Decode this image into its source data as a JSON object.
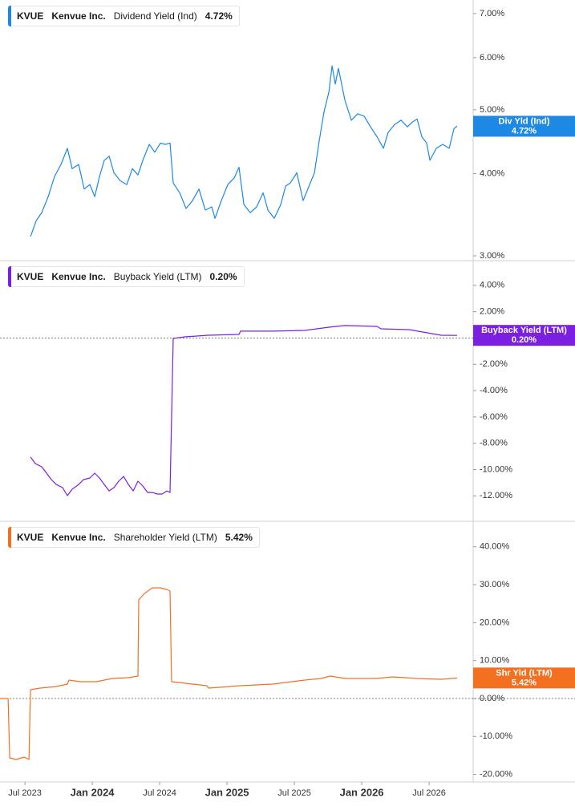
{
  "chart_data": [
    {
      "type": "line",
      "ticker": "KVUE",
      "company": "Kenvue Inc.",
      "title": "Dividend Yield (Ind)",
      "current": {
        "value": 4.72,
        "label": "4.72%"
      },
      "badge_label": "Div Yld (Ind)",
      "color": "#1e88e5",
      "log_scale": true,
      "xlim": [
        2023.315,
        2026.827
      ],
      "ylim": [
        2.95,
        7.34
      ],
      "yticks": [
        {
          "value": 3,
          "label": "3.00%"
        },
        {
          "value": 4,
          "label": "4.00%"
        },
        {
          "value": 5,
          "label": "5.00%"
        },
        {
          "value": 6,
          "label": "6.00%"
        },
        {
          "value": 7,
          "label": "7.00%"
        }
      ],
      "x": [
        2023.542,
        2023.583,
        2023.625,
        2023.673,
        2023.72,
        2023.768,
        2023.815,
        2023.851,
        2023.899,
        2023.94,
        2023.982,
        2024.018,
        2024.054,
        2024.089,
        2024.125,
        2024.161,
        2024.208,
        2024.256,
        2024.298,
        2024.339,
        2024.375,
        2024.423,
        2024.464,
        2024.506,
        2024.542,
        2024.577,
        2024.601,
        2024.649,
        2024.696,
        2024.744,
        2024.792,
        2024.839,
        2024.887,
        2024.911,
        2024.958,
        2025.006,
        2025.054,
        2025.089,
        2025.125,
        2025.173,
        2025.22,
        2025.268,
        2025.304,
        2025.351,
        2025.399,
        2025.435,
        2025.47,
        2025.518,
        2025.565,
        2025.613,
        2025.649,
        2025.685,
        2025.72,
        2025.756,
        2025.78,
        2025.804,
        2025.827,
        2025.875,
        2025.923,
        2025.97,
        2026.018,
        2026.065,
        2026.113,
        2026.161,
        2026.196,
        2026.244,
        2026.292,
        2026.339,
        2026.375,
        2026.411,
        2026.446,
        2026.482,
        2026.506,
        2026.554,
        2026.601,
        2026.649,
        2026.685,
        2026.708
      ],
      "values": [
        3.21,
        3.39,
        3.49,
        3.69,
        3.96,
        4.13,
        4.37,
        4.07,
        4.13,
        3.79,
        3.85,
        3.69,
        3.96,
        4.19,
        4.25,
        4.01,
        3.9,
        3.85,
        4.07,
        3.98,
        4.19,
        4.43,
        4.31,
        4.45,
        4.43,
        4.45,
        3.87,
        3.74,
        3.54,
        3.64,
        3.79,
        3.52,
        3.56,
        3.42,
        3.64,
        3.85,
        3.94,
        4.09,
        3.59,
        3.49,
        3.56,
        3.74,
        3.52,
        3.42,
        3.59,
        3.83,
        3.87,
        4.01,
        3.64,
        3.85,
        4.01,
        4.49,
        4.96,
        5.32,
        5.83,
        5.47,
        5.78,
        5.17,
        4.82,
        4.93,
        4.89,
        4.71,
        4.55,
        4.37,
        4.62,
        4.75,
        4.82,
        4.71,
        4.79,
        4.84,
        4.55,
        4.45,
        4.19,
        4.37,
        4.43,
        4.37,
        4.68,
        4.72
      ]
    },
    {
      "type": "line",
      "ticker": "KVUE",
      "company": "Kenvue Inc.",
      "title": "Buyback Yield (LTM)",
      "current": {
        "value": 0.2,
        "label": "0.20%"
      },
      "badge_label": "Buyback Yield (LTM)",
      "color": "#7b1fe0",
      "zero_line": true,
      "xlim": [
        2023.315,
        2026.827
      ],
      "ylim": [
        -13.93,
        5.88
      ],
      "yticks": [
        {
          "value": 4,
          "label": "4.00%"
        },
        {
          "value": 2,
          "label": "2.00%"
        },
        {
          "value": -2,
          "label": "-2.00%"
        },
        {
          "value": -4,
          "label": "-4.00%"
        },
        {
          "value": -6,
          "label": "-6.00%"
        },
        {
          "value": -8,
          "label": "-8.00%"
        },
        {
          "value": -10,
          "label": "-10.00%"
        },
        {
          "value": -12,
          "label": "-12.00%"
        }
      ],
      "x": [
        2023.542,
        2023.577,
        2023.625,
        2023.661,
        2023.696,
        2023.732,
        2023.78,
        2023.815,
        2023.851,
        2023.899,
        2023.935,
        2023.982,
        2024.018,
        2024.054,
        2024.089,
        2024.125,
        2024.161,
        2024.196,
        2024.232,
        2024.268,
        2024.304,
        2024.339,
        2024.375,
        2024.411,
        2024.446,
        2024.482,
        2024.518,
        2024.554,
        2024.577,
        2024.601,
        2024.685,
        2024.863,
        2025.089,
        2025.101,
        2025.339,
        2025.577,
        2025.756,
        2025.875,
        2026.113,
        2026.143,
        2026.351,
        2026.589,
        2026.708
      ],
      "values": [
        -9.05,
        -9.54,
        -9.79,
        -10.27,
        -10.76,
        -11.13,
        -11.37,
        -11.98,
        -11.49,
        -11.13,
        -10.76,
        -10.64,
        -10.27,
        -10.64,
        -11.13,
        -11.62,
        -11.37,
        -10.88,
        -10.52,
        -11.13,
        -11.62,
        -10.88,
        -11.25,
        -11.74,
        -11.74,
        -11.86,
        -11.86,
        -11.62,
        -11.74,
        -0.03,
        0.09,
        0.21,
        0.27,
        0.52,
        0.52,
        0.58,
        0.82,
        0.95,
        0.88,
        0.7,
        0.64,
        0.21,
        0.2
      ]
    },
    {
      "type": "line",
      "ticker": "KVUE",
      "company": "Kenvue Inc.",
      "title": "Shareholder Yield (LTM)",
      "current": {
        "value": 5.42,
        "label": "5.42%"
      },
      "badge_label": "Shr Yld (LTM)",
      "color": "#f37021",
      "zero_line": true,
      "xlim": [
        2023.315,
        2026.827
      ],
      "ylim": [
        -21.99,
        46.72
      ],
      "yticks": [
        {
          "value": 40,
          "label": "40.00%"
        },
        {
          "value": 30,
          "label": "30.00%"
        },
        {
          "value": 20,
          "label": "20.00%"
        },
        {
          "value": 10,
          "label": "10.00%"
        },
        {
          "value": 0,
          "label": "0.00%"
        },
        {
          "value": -10,
          "label": "-10.00%"
        },
        {
          "value": -20,
          "label": "-20.00%"
        }
      ],
      "xticks": [
        {
          "value": 2023.5,
          "label": "Jul 2023"
        },
        {
          "value": 2024.0,
          "label": "Jan 2024"
        },
        {
          "value": 2024.5,
          "label": "Jul 2024"
        },
        {
          "value": 2025.0,
          "label": "Jan 2025"
        },
        {
          "value": 2025.5,
          "label": "Jul 2025"
        },
        {
          "value": 2026.0,
          "label": "Jan 2026"
        },
        {
          "value": 2026.5,
          "label": "Jul 2026"
        }
      ],
      "x": [
        2023.315,
        2023.375,
        2023.387,
        2023.435,
        2023.494,
        2023.53,
        2023.542,
        2023.613,
        2023.732,
        2023.815,
        2023.827,
        2023.911,
        2024.03,
        2024.089,
        2024.149,
        2024.268,
        2024.339,
        2024.345,
        2024.387,
        2024.446,
        2024.506,
        2024.554,
        2024.577,
        2024.589,
        2024.744,
        2024.851,
        2024.863,
        2025.101,
        2025.339,
        2025.577,
        2025.696,
        2025.768,
        2025.875,
        2026.113,
        2026.232,
        2026.411,
        2026.589,
        2026.708
      ],
      "values": [
        0,
        0,
        -15.64,
        -16.07,
        -15.43,
        -16.07,
        2.33,
        2.75,
        3.17,
        3.81,
        4.86,
        4.44,
        4.44,
        4.86,
        5.29,
        5.5,
        5.92,
        26.0,
        27.7,
        29.18,
        29.18,
        28.75,
        28.33,
        4.44,
        3.81,
        3.38,
        2.75,
        3.38,
        3.81,
        4.86,
        5.29,
        5.92,
        5.29,
        5.29,
        5.71,
        5.29,
        5.07,
        5.42
      ]
    }
  ]
}
